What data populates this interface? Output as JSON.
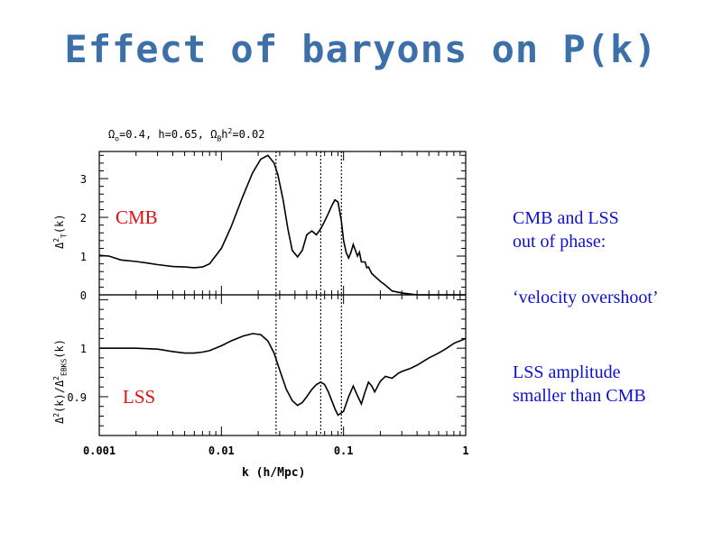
{
  "slide": {
    "title": "Effect of baryons on P(k)",
    "params": {
      "omega_o": "=0.4, h=0.65, ",
      "omega_b": "h",
      "omega_b_rest": "=0.02"
    },
    "notes": {
      "line1": "CMB and LSS",
      "line2": "out of phase:",
      "line3": "‘velocity overshoot’",
      "line4": "LSS amplitude",
      "line5": "smaller than CMB"
    },
    "colors": {
      "title": "#3d6fa8",
      "notes": "#1010d0",
      "panel_labels": "#e01010"
    }
  },
  "chart_data": [
    {
      "type": "line",
      "panel": "top",
      "label": "CMB",
      "ylabel": "Δ²_T(k)",
      "xscale": "log",
      "xlim": [
        0.001,
        1
      ],
      "ylim": [
        0,
        3.7
      ],
      "yticks": [
        "0",
        "1",
        "2",
        "3"
      ],
      "vlines": [
        0.028,
        0.065,
        0.096
      ],
      "x": [
        0.001,
        0.0012,
        0.0015,
        0.002,
        0.0025,
        0.003,
        0.004,
        0.005,
        0.006,
        0.007,
        0.008,
        0.01,
        0.012,
        0.015,
        0.018,
        0.021,
        0.024,
        0.027,
        0.029,
        0.032,
        0.035,
        0.038,
        0.042,
        0.046,
        0.05,
        0.055,
        0.06,
        0.065,
        0.07,
        0.075,
        0.08,
        0.085,
        0.09,
        0.096,
        0.1,
        0.105,
        0.11,
        0.115,
        0.12,
        0.13,
        0.135,
        0.14,
        0.15,
        0.155,
        0.16,
        0.17,
        0.18,
        0.2,
        0.22,
        0.25,
        0.3,
        0.35,
        0.4,
        0.5,
        0.6,
        0.7,
        0.8,
        1.0
      ],
      "values": [
        1.02,
        1.0,
        0.9,
        0.86,
        0.82,
        0.78,
        0.73,
        0.72,
        0.7,
        0.72,
        0.8,
        1.2,
        1.75,
        2.55,
        3.15,
        3.5,
        3.6,
        3.4,
        3.1,
        2.45,
        1.7,
        1.15,
        0.98,
        1.15,
        1.55,
        1.65,
        1.55,
        1.7,
        1.9,
        2.1,
        2.3,
        2.45,
        2.4,
        1.9,
        1.4,
        1.1,
        0.95,
        1.1,
        1.3,
        1.0,
        1.1,
        0.85,
        0.85,
        0.7,
        0.72,
        0.55,
        0.48,
        0.35,
        0.25,
        0.1,
        0.05,
        0.02,
        0.0,
        0.0,
        0.0,
        0.0,
        0.0,
        0.0
      ]
    },
    {
      "type": "line",
      "panel": "bottom",
      "label": "LSS",
      "ylabel": "Δ²(k)/Δ²_EBKS(k)",
      "xlabel": "k (h/Mpc)",
      "xscale": "log",
      "xlim": [
        0.001,
        1
      ],
      "ylim": [
        0.82,
        1.11
      ],
      "xticks": [
        "0.001",
        "0.01",
        "0.1",
        "1"
      ],
      "yticks": [
        "0.9",
        "1"
      ],
      "vlines": [
        0.028,
        0.065,
        0.096
      ],
      "x": [
        0.001,
        0.0015,
        0.002,
        0.003,
        0.004,
        0.005,
        0.006,
        0.007,
        0.008,
        0.01,
        0.012,
        0.015,
        0.018,
        0.021,
        0.024,
        0.027,
        0.03,
        0.034,
        0.038,
        0.042,
        0.046,
        0.05,
        0.055,
        0.06,
        0.065,
        0.07,
        0.075,
        0.08,
        0.085,
        0.09,
        0.1,
        0.11,
        0.12,
        0.13,
        0.14,
        0.15,
        0.16,
        0.17,
        0.18,
        0.2,
        0.22,
        0.25,
        0.28,
        0.3,
        0.35,
        0.4,
        0.5,
        0.6,
        0.7,
        0.8,
        1.0
      ],
      "values": [
        1.0,
        1.0,
        1.0,
        0.998,
        0.993,
        0.99,
        0.99,
        0.992,
        0.995,
        1.005,
        1.015,
        1.025,
        1.03,
        1.028,
        1.015,
        0.99,
        0.955,
        0.915,
        0.892,
        0.882,
        0.888,
        0.9,
        0.915,
        0.925,
        0.93,
        0.925,
        0.91,
        0.892,
        0.875,
        0.862,
        0.87,
        0.9,
        0.922,
        0.902,
        0.885,
        0.91,
        0.93,
        0.922,
        0.91,
        0.932,
        0.942,
        0.938,
        0.948,
        0.952,
        0.958,
        0.965,
        0.98,
        0.99,
        1.0,
        1.01,
        1.02
      ]
    }
  ]
}
